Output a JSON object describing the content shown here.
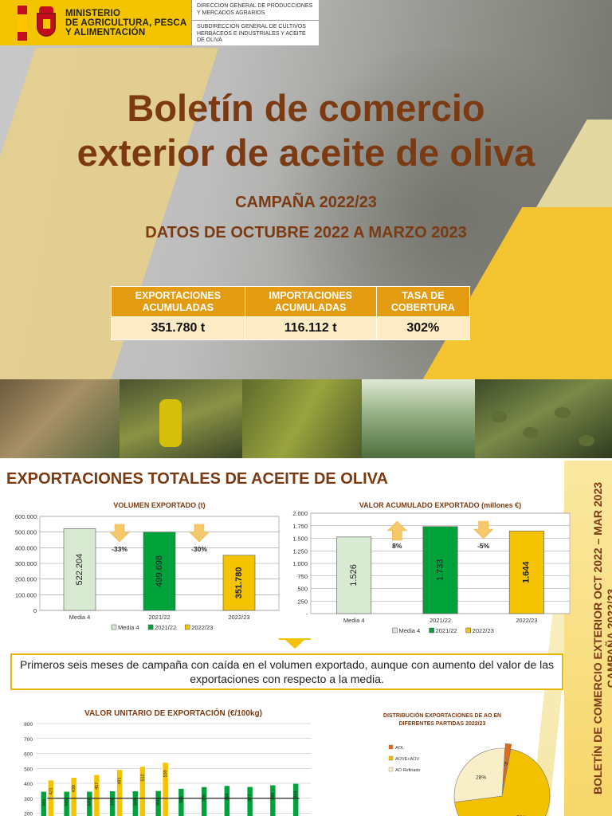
{
  "header": {
    "ministry_lines": [
      "MINISTERIO",
      "DE AGRICULTURA, PESCA",
      "Y ALIMENTACIÓN"
    ],
    "direction_general": "DIRECCION GENERAL DE PRODUCCIONES Y MERCADOS AGRARIOS",
    "subdirection": "SUBDIRECCIÓN GENERAL DE CULTIVOS HERBÁCEOS E INDUSTRIALES Y ACEITE DE OLIVA"
  },
  "title": {
    "line1": "Boletín de comercio",
    "line2": "exterior de aceite de oliva"
  },
  "campaign": "CAMPAÑA 2022/23",
  "dates": "DATOS DE OCTUBRE 2022 A MARZO 2023",
  "summary": {
    "headers": [
      "EXPORTACIONES ACUMULADAS",
      "IMPORTACIONES ACUMULADAS",
      "TASA DE COBERTURA"
    ],
    "values": [
      "351.780 t",
      "116.112 t",
      "302%"
    ]
  },
  "section_title": "EXPORTACIONES TOTALES DE ACEITE DE OLIVA",
  "side_text": {
    "line1": "BOLETÍN DE COMERCIO EXTERIOR OCT 2022 – MAR 2023",
    "line2": "CAMPAÑA 2022/23"
  },
  "callout": "Primeros seis meses de campaña con caída en el volumen exportado, aunque con aumento del valor de las exportaciones con respecto a la media.",
  "colors": {
    "brown_title": "#7b3a12",
    "table_header": "#e39b12",
    "table_body": "#fcebc5",
    "media4": "#d9ead3",
    "y2122": "#00a23a",
    "y2223": "#f5c400",
    "arrow": "#f5c96a"
  },
  "chart_data": [
    {
      "type": "bar",
      "title": "VOLUMEN EXPORTADO (t)",
      "categories": [
        "Media 4",
        "2021/22",
        "2022/23"
      ],
      "values": [
        522204,
        499698,
        351780
      ],
      "value_labels": [
        "522.204",
        "499.698",
        "351.780"
      ],
      "yticks": [
        "0",
        "100.000",
        "200.000",
        "300.000",
        "400.000",
        "500.000",
        "600.000"
      ],
      "ylim": [
        0,
        600000
      ],
      "legend": [
        "Media 4",
        "2021/22",
        "2022/23"
      ],
      "changes": [
        {
          "label": "-33%",
          "direction": "down"
        },
        {
          "label": "-30%",
          "direction": "down"
        }
      ]
    },
    {
      "type": "bar",
      "title": "VALOR ACUMULADO EXPORTADO  (millones €)",
      "categories": [
        "Media 4",
        "2021/22",
        "2022/23"
      ],
      "values": [
        1526,
        1733,
        1644
      ],
      "value_labels": [
        "1.526",
        "1.733",
        "1.644"
      ],
      "yticks": [
        "-",
        "250",
        "500",
        "750",
        "1.000",
        "1.250",
        "1.500",
        "1.750",
        "2.000"
      ],
      "ylim": [
        0,
        2000
      ],
      "legend": [
        "Media 4",
        "2021/22",
        "2022/23"
      ],
      "changes": [
        {
          "label": "8%",
          "direction": "up"
        },
        {
          "label": "-5%",
          "direction": "down"
        }
      ]
    },
    {
      "type": "bar",
      "title": "VALOR UNITARIO DE EXPORTACIÓN (€/100kg)",
      "yticks": [
        "0",
        "100",
        "200",
        "300",
        "400",
        "500",
        "600",
        "700",
        "800"
      ],
      "ylim": [
        0,
        800
      ],
      "groups": [
        {
          "green": 345,
          "yellow": 421
        },
        {
          "green": 345,
          "yellow": 439
        },
        {
          "green": 345,
          "yellow": 457
        },
        {
          "green": 348,
          "yellow": 491
        },
        {
          "green": 348,
          "yellow": 512
        },
        {
          "green": 350,
          "yellow": 539
        },
        {
          "green": 365,
          "yellow": 0
        },
        {
          "green": 376,
          "yellow": 0
        },
        {
          "green": 384,
          "yellow": 0
        },
        {
          "green": 377,
          "yellow": 0
        },
        {
          "green": 388,
          "yellow": 0
        },
        {
          "green": 399,
          "yellow": 0
        }
      ],
      "line_values": [
        300,
        300,
        300,
        300,
        300,
        300,
        300,
        300,
        300,
        300,
        300,
        300
      ]
    },
    {
      "type": "pie",
      "title": "DISTRIBUCIÓN EXPORTACIONES DE AO EN DIFERENTES PARTIDAS 2022/23",
      "slices": [
        {
          "name": "AOL",
          "value": 2,
          "label": "2%",
          "color": "#e06a1b"
        },
        {
          "name": "AOVE+AOV",
          "value": 70,
          "label": "70%",
          "color": "#f2c200"
        },
        {
          "name": "AO Refinado",
          "value": 28,
          "label": "28%",
          "color": "#f8efc8"
        }
      ]
    }
  ]
}
